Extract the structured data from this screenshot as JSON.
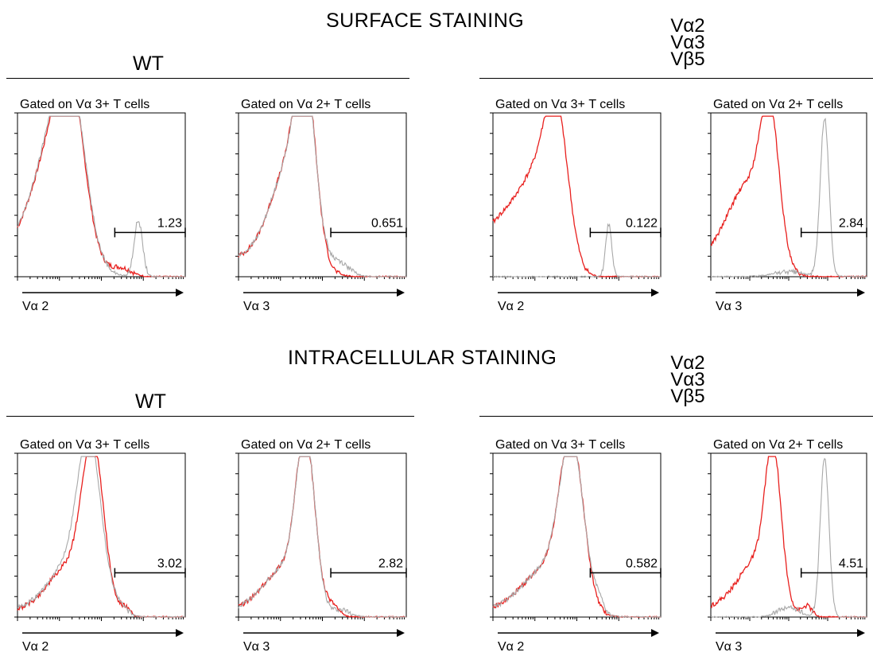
{
  "sections": [
    {
      "title": "SURFACE STAINING",
      "wt_label": "WT",
      "transgenic_label": [
        "Vα2",
        "Vα3",
        "Vβ5"
      ]
    },
    {
      "title": "INTRACELLULAR STAINING",
      "wt_label": "WT",
      "transgenic_label": [
        "Vα2",
        "Vα3",
        "Vβ5"
      ]
    }
  ],
  "colors": {
    "sample": "#e8201e",
    "control": "#a8a8a8",
    "axis": "#000000"
  },
  "chart_data": [
    {
      "type": "line",
      "section": "SURFACE STAINING",
      "group": "WT",
      "title": "Gated on Vα 3+ T cells",
      "xlabel": "Vα 2",
      "gate_value": "1.23",
      "gate": [
        0.58,
        1.0
      ],
      "series": [
        {
          "color": "red",
          "peaks": [
            [
              0.32,
              0.67,
              0.08
            ],
            [
              0.23,
              0.75,
              0.13
            ],
            [
              0.01,
              0.15,
              0.16
            ],
            [
              0.62,
              0.05,
              0.06
            ]
          ]
        },
        {
          "color": "gray",
          "peaks": [
            [
              0.32,
              0.69,
              0.085
            ],
            [
              0.23,
              0.75,
              0.13
            ],
            [
              0.01,
              0.15,
              0.16
            ],
            [
              0.72,
              0.35,
              0.025
            ]
          ]
        }
      ]
    },
    {
      "type": "line",
      "section": "SURFACE STAINING",
      "group": "WT",
      "title": "Gated on Vα 2+ T cells",
      "xlabel": "Vα 3",
      "gate_value": "0.651",
      "gate": [
        0.55,
        1.0
      ],
      "series": [
        {
          "color": "red",
          "peaks": [
            [
              0.4,
              0.92,
              0.06
            ],
            [
              0.3,
              0.6,
              0.11
            ],
            [
              0.05,
              0.12,
              0.2
            ]
          ]
        },
        {
          "color": "gray",
          "peaks": [
            [
              0.4,
              0.9,
              0.06
            ],
            [
              0.3,
              0.6,
              0.11
            ],
            [
              0.05,
              0.12,
              0.2
            ],
            [
              0.6,
              0.08,
              0.06
            ]
          ]
        }
      ]
    },
    {
      "type": "line",
      "section": "SURFACE STAINING",
      "group": "Vα2 Vα3 Vβ5",
      "title": "Gated on Vα 3+ T cells",
      "xlabel": "Vα 2",
      "gate_value": "0.122",
      "gate": [
        0.58,
        1.0
      ],
      "series": [
        {
          "color": "red",
          "peaks": [
            [
              0.38,
              0.85,
              0.07
            ],
            [
              0.25,
              0.55,
              0.11
            ],
            [
              0.02,
              0.3,
              0.12
            ]
          ]
        },
        {
          "color": "gray",
          "peaks": [
            [
              0.69,
              0.33,
              0.018
            ]
          ]
        }
      ]
    },
    {
      "type": "line",
      "section": "SURFACE STAINING",
      "group": "Vα2 Vα3 Vβ5",
      "title": "Gated on Vα 2+ T cells",
      "xlabel": "Vα 3",
      "gate_value": "2.84",
      "gate": [
        0.58,
        1.0
      ],
      "series": [
        {
          "color": "red",
          "peaks": [
            [
              0.38,
              0.82,
              0.06
            ],
            [
              0.25,
              0.5,
              0.12
            ],
            [
              0.05,
              0.15,
              0.15
            ]
          ]
        },
        {
          "color": "gray",
          "peaks": [
            [
              0.73,
              0.99,
              0.028
            ],
            [
              0.5,
              0.03,
              0.1
            ]
          ]
        }
      ]
    },
    {
      "type": "line",
      "section": "INTRACELLULAR STAINING",
      "group": "WT",
      "title": "Gated on Vα 3+ T cells",
      "xlabel": "Vα 2",
      "gate_value": "3.02",
      "gate": [
        0.58,
        1.0
      ],
      "series": [
        {
          "color": "red",
          "peaks": [
            [
              0.45,
              0.98,
              0.065
            ],
            [
              0.3,
              0.3,
              0.12
            ],
            [
              0.04,
              0.04,
              0.12
            ],
            [
              0.64,
              0.05,
              0.03
            ]
          ]
        },
        {
          "color": "gray",
          "peaks": [
            [
              0.43,
              0.98,
              0.07
            ],
            [
              0.3,
              0.3,
              0.12
            ],
            [
              0.04,
              0.05,
              0.12
            ],
            [
              0.6,
              0.06,
              0.05
            ]
          ]
        }
      ]
    },
    {
      "type": "line",
      "section": "INTRACELLULAR STAINING",
      "group": "WT",
      "title": "Gated on Vα 2+ T cells",
      "xlabel": "Vα 3",
      "gate_value": "2.82",
      "gate": [
        0.55,
        1.0
      ],
      "series": [
        {
          "color": "red",
          "peaks": [
            [
              0.4,
              0.98,
              0.055
            ],
            [
              0.28,
              0.3,
              0.12
            ],
            [
              0.04,
              0.05,
              0.12
            ],
            [
              0.56,
              0.06,
              0.035
            ]
          ]
        },
        {
          "color": "gray",
          "peaks": [
            [
              0.4,
              0.98,
              0.055
            ],
            [
              0.28,
              0.3,
              0.12
            ],
            [
              0.04,
              0.05,
              0.12
            ],
            [
              0.62,
              0.04,
              0.05
            ]
          ]
        }
      ]
    },
    {
      "type": "line",
      "section": "INTRACELLULAR STAINING",
      "group": "Vα2 Vα3 Vβ5",
      "title": "Gated on Vα 3+ T cells",
      "xlabel": "Vα 2",
      "gate_value": "0.582",
      "gate": [
        0.58,
        1.0
      ],
      "series": [
        {
          "color": "red",
          "peaks": [
            [
              0.47,
              0.97,
              0.07
            ],
            [
              0.32,
              0.3,
              0.14
            ],
            [
              0.04,
              0.04,
              0.12
            ]
          ]
        },
        {
          "color": "gray",
          "peaks": [
            [
              0.47,
              0.97,
              0.07
            ],
            [
              0.32,
              0.3,
              0.14
            ],
            [
              0.04,
              0.04,
              0.12
            ],
            [
              0.63,
              0.07,
              0.03
            ]
          ]
        }
      ]
    },
    {
      "type": "line",
      "section": "INTRACELLULAR STAINING",
      "group": "Vα2 Vα3 Vβ5",
      "title": "Gated on Vα 2+ T cells",
      "xlabel": "Vα 3",
      "gate_value": "4.51",
      "gate": [
        0.58,
        1.0
      ],
      "series": [
        {
          "color": "red",
          "peaks": [
            [
              0.4,
              0.85,
              0.05
            ],
            [
              0.3,
              0.35,
              0.12
            ],
            [
              0.04,
              0.06,
              0.12
            ],
            [
              0.62,
              0.06,
              0.03
            ]
          ]
        },
        {
          "color": "gray",
          "peaks": [
            [
              0.73,
              0.99,
              0.028
            ],
            [
              0.5,
              0.06,
              0.07
            ]
          ]
        }
      ]
    }
  ]
}
